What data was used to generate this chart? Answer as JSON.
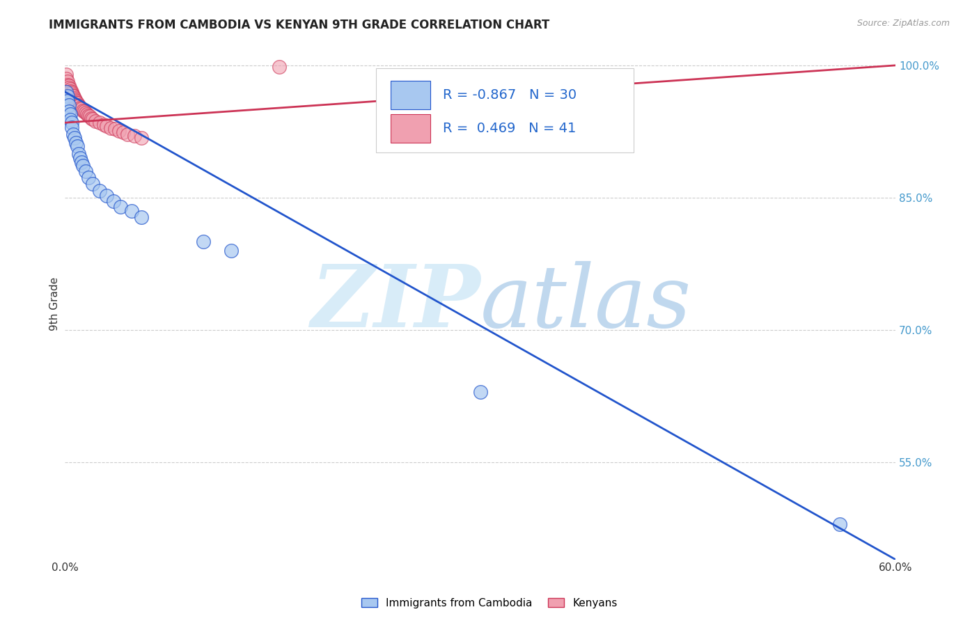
{
  "title": "IMMIGRANTS FROM CAMBODIA VS KENYAN 9TH GRADE CORRELATION CHART",
  "source": "Source: ZipAtlas.com",
  "ylabel": "9th Grade",
  "xlim": [
    0.0,
    0.6
  ],
  "ylim": [
    0.44,
    1.02
  ],
  "yticks": [
    0.55,
    0.7,
    0.85,
    1.0
  ],
  "ytick_labels": [
    "55.0%",
    "70.0%",
    "85.0%",
    "100.0%"
  ],
  "blue_color": "#a8c8f0",
  "blue_line_color": "#2255cc",
  "pink_color": "#f0a0b0",
  "pink_line_color": "#cc3355",
  "legend_R_blue": "-0.867",
  "legend_N_blue": "30",
  "legend_R_pink": "0.469",
  "legend_N_pink": "41",
  "legend_label_blue": "Immigrants from Cambodia",
  "legend_label_pink": "Kenyans",
  "blue_scatter_x": [
    0.001,
    0.002,
    0.002,
    0.003,
    0.003,
    0.004,
    0.004,
    0.005,
    0.005,
    0.006,
    0.007,
    0.008,
    0.009,
    0.01,
    0.011,
    0.012,
    0.013,
    0.015,
    0.017,
    0.02,
    0.025,
    0.03,
    0.035,
    0.04,
    0.048,
    0.055,
    0.1,
    0.12,
    0.3,
    0.56
  ],
  "blue_scatter_y": [
    0.97,
    0.965,
    0.96,
    0.955,
    0.948,
    0.945,
    0.938,
    0.935,
    0.93,
    0.922,
    0.918,
    0.912,
    0.908,
    0.9,
    0.895,
    0.89,
    0.886,
    0.88,
    0.873,
    0.866,
    0.858,
    0.852,
    0.846,
    0.84,
    0.835,
    0.828,
    0.8,
    0.79,
    0.63,
    0.48
  ],
  "pink_scatter_x": [
    0.001,
    0.001,
    0.002,
    0.002,
    0.003,
    0.003,
    0.004,
    0.004,
    0.005,
    0.005,
    0.006,
    0.006,
    0.007,
    0.007,
    0.008,
    0.008,
    0.009,
    0.01,
    0.01,
    0.011,
    0.012,
    0.013,
    0.014,
    0.015,
    0.016,
    0.017,
    0.018,
    0.019,
    0.02,
    0.022,
    0.025,
    0.028,
    0.03,
    0.033,
    0.036,
    0.039,
    0.042,
    0.045,
    0.05,
    0.055,
    0.155
  ],
  "pink_scatter_y": [
    0.99,
    0.985,
    0.982,
    0.978,
    0.977,
    0.975,
    0.973,
    0.971,
    0.97,
    0.968,
    0.966,
    0.965,
    0.963,
    0.961,
    0.96,
    0.958,
    0.957,
    0.955,
    0.954,
    0.952,
    0.951,
    0.949,
    0.948,
    0.946,
    0.945,
    0.943,
    0.942,
    0.94,
    0.939,
    0.937,
    0.935,
    0.933,
    0.931,
    0.929,
    0.928,
    0.926,
    0.924,
    0.922,
    0.92,
    0.918,
    0.998
  ],
  "blue_line_x": [
    0.0,
    0.6
  ],
  "blue_line_y": [
    0.97,
    0.44
  ],
  "pink_line_x": [
    0.0,
    0.6
  ],
  "pink_line_y": [
    0.935,
    1.0
  ],
  "watermark_ZIP_color": "#c8dff0",
  "watermark_atlas_color": "#c8dff0",
  "background_color": "#ffffff",
  "grid_color": "#cccccc"
}
